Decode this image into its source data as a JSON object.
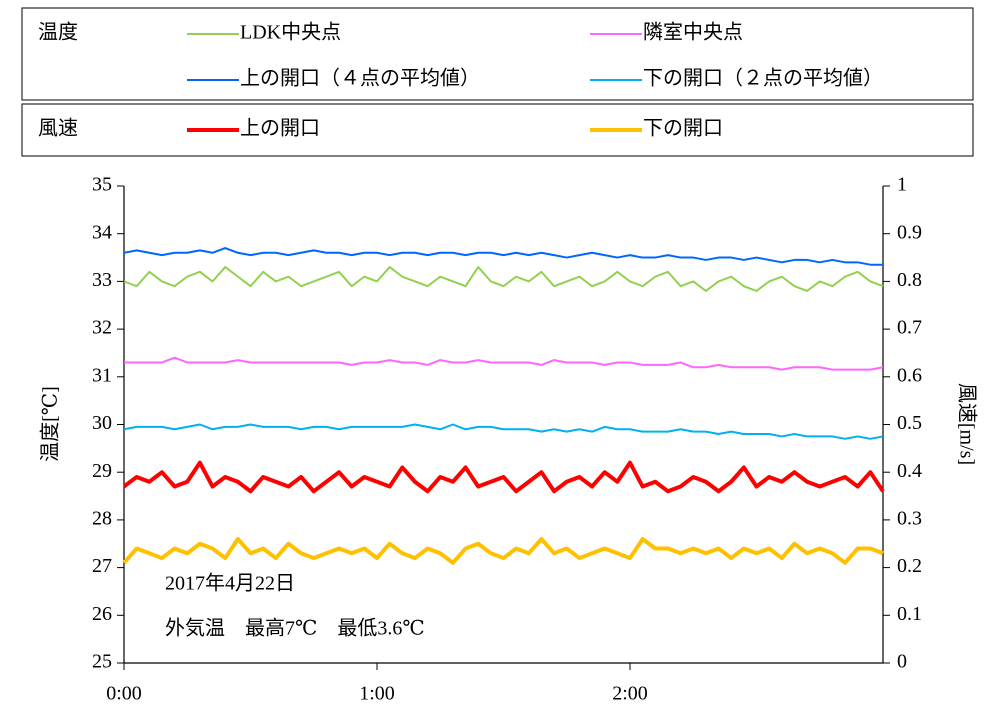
{
  "chart_data": {
    "type": "line",
    "legend_titles": [
      "温度",
      "風速"
    ],
    "annotations": [
      "2017年4月22日",
      "外気温　最高7℃　最低3.6℃"
    ],
    "ylabel": "温度[℃]",
    "y2label": "風速[m/s]",
    "x": [
      0,
      3,
      6,
      9,
      12,
      15,
      18,
      21,
      24,
      27,
      30,
      33,
      36,
      39,
      42,
      45,
      48,
      51,
      54,
      57,
      60,
      63,
      66,
      69,
      72,
      75,
      78,
      81,
      84,
      87,
      90,
      93,
      96,
      99,
      102,
      105,
      108,
      111,
      114,
      117,
      120,
      123,
      126,
      129,
      132,
      135,
      138,
      141,
      144,
      147,
      150,
      153,
      156,
      159,
      162,
      165,
      168,
      171,
      174,
      177,
      180
    ],
    "xlim": [
      0,
      180
    ],
    "xticks": [
      {
        "value": 0,
        "label": "0:00"
      },
      {
        "value": 60,
        "label": "1:00"
      },
      {
        "value": 120,
        "label": "2:00"
      }
    ],
    "ylim": [
      25,
      35
    ],
    "yticks": [
      25,
      26,
      27,
      28,
      29,
      30,
      31,
      32,
      33,
      34,
      35
    ],
    "y2lim": [
      0,
      1
    ],
    "y2ticks": [
      0,
      0.1,
      0.2,
      0.3,
      0.4,
      0.5,
      0.6,
      0.7,
      0.8,
      0.9,
      1
    ],
    "series": [
      {
        "name": "LDK中央点",
        "color": "#92d050",
        "values": [
          33.0,
          32.9,
          33.2,
          33.0,
          32.9,
          33.1,
          33.2,
          33.0,
          33.3,
          33.1,
          32.9,
          33.2,
          33.0,
          33.1,
          32.9,
          33.0,
          33.1,
          33.2,
          32.9,
          33.1,
          33.0,
          33.3,
          33.1,
          33.0,
          32.9,
          33.1,
          33.0,
          32.9,
          33.3,
          33.0,
          32.9,
          33.1,
          33.0,
          33.2,
          32.9,
          33.0,
          33.1,
          32.9,
          33.0,
          33.2,
          33.0,
          32.9,
          33.1,
          33.2,
          32.9,
          33.0,
          32.8,
          33.0,
          33.1,
          32.9,
          32.8,
          33.0,
          33.1,
          32.9,
          32.8,
          33.0,
          32.9,
          33.1,
          33.2,
          33.0,
          32.9
        ]
      },
      {
        "name": "隣室中央点",
        "color": "#ff66ff",
        "values": [
          31.3,
          31.3,
          31.3,
          31.3,
          31.4,
          31.3,
          31.3,
          31.3,
          31.3,
          31.35,
          31.3,
          31.3,
          31.3,
          31.3,
          31.3,
          31.3,
          31.3,
          31.3,
          31.25,
          31.3,
          31.3,
          31.35,
          31.3,
          31.3,
          31.25,
          31.35,
          31.3,
          31.3,
          31.35,
          31.3,
          31.3,
          31.3,
          31.3,
          31.25,
          31.35,
          31.3,
          31.3,
          31.3,
          31.25,
          31.3,
          31.3,
          31.25,
          31.25,
          31.25,
          31.3,
          31.2,
          31.2,
          31.25,
          31.2,
          31.2,
          31.2,
          31.2,
          31.15,
          31.2,
          31.2,
          31.2,
          31.15,
          31.15,
          31.15,
          31.15,
          31.2
        ]
      },
      {
        "name": "上の開口（４点の平均値）",
        "color": "#0066ff",
        "values": [
          33.6,
          33.65,
          33.6,
          33.55,
          33.6,
          33.6,
          33.65,
          33.6,
          33.7,
          33.6,
          33.55,
          33.6,
          33.6,
          33.55,
          33.6,
          33.65,
          33.6,
          33.6,
          33.55,
          33.6,
          33.6,
          33.55,
          33.6,
          33.6,
          33.55,
          33.6,
          33.6,
          33.55,
          33.6,
          33.6,
          33.55,
          33.6,
          33.55,
          33.6,
          33.55,
          33.5,
          33.55,
          33.6,
          33.55,
          33.5,
          33.55,
          33.5,
          33.5,
          33.55,
          33.5,
          33.5,
          33.45,
          33.5,
          33.5,
          33.45,
          33.5,
          33.45,
          33.4,
          33.45,
          33.45,
          33.4,
          33.45,
          33.4,
          33.4,
          33.35,
          33.35
        ]
      },
      {
        "name": "下の開口（２点の平均値）",
        "color": "#00b0f0",
        "values": [
          29.9,
          29.95,
          29.95,
          29.95,
          29.9,
          29.95,
          30.0,
          29.9,
          29.95,
          29.95,
          30.0,
          29.95,
          29.95,
          29.95,
          29.9,
          29.95,
          29.95,
          29.9,
          29.95,
          29.95,
          29.95,
          29.95,
          29.95,
          30.0,
          29.95,
          29.9,
          30.0,
          29.9,
          29.95,
          29.95,
          29.9,
          29.9,
          29.9,
          29.85,
          29.9,
          29.85,
          29.9,
          29.85,
          29.95,
          29.9,
          29.9,
          29.85,
          29.85,
          29.85,
          29.9,
          29.85,
          29.85,
          29.8,
          29.85,
          29.8,
          29.8,
          29.8,
          29.75,
          29.8,
          29.75,
          29.75,
          29.75,
          29.7,
          29.75,
          29.7,
          29.75
        ]
      },
      {
        "name": "上の開口",
        "color": "#ff0000",
        "axis": "y2",
        "values": [
          0.37,
          0.39,
          0.38,
          0.4,
          0.37,
          0.38,
          0.42,
          0.37,
          0.39,
          0.38,
          0.36,
          0.39,
          0.38,
          0.37,
          0.39,
          0.36,
          0.38,
          0.4,
          0.37,
          0.39,
          0.38,
          0.37,
          0.41,
          0.38,
          0.36,
          0.39,
          0.38,
          0.41,
          0.37,
          0.38,
          0.39,
          0.36,
          0.38,
          0.4,
          0.36,
          0.38,
          0.39,
          0.37,
          0.4,
          0.38,
          0.42,
          0.37,
          0.38,
          0.36,
          0.37,
          0.39,
          0.38,
          0.36,
          0.38,
          0.41,
          0.37,
          0.39,
          0.38,
          0.4,
          0.38,
          0.37,
          0.38,
          0.39,
          0.37,
          0.4,
          0.36
        ]
      },
      {
        "name": "下の開口",
        "color": "#ffc000",
        "axis": "y2",
        "values": [
          0.21,
          0.24,
          0.23,
          0.22,
          0.24,
          0.23,
          0.25,
          0.24,
          0.22,
          0.26,
          0.23,
          0.24,
          0.22,
          0.25,
          0.23,
          0.22,
          0.23,
          0.24,
          0.23,
          0.24,
          0.22,
          0.25,
          0.23,
          0.22,
          0.24,
          0.23,
          0.21,
          0.24,
          0.25,
          0.23,
          0.22,
          0.24,
          0.23,
          0.26,
          0.23,
          0.24,
          0.22,
          0.23,
          0.24,
          0.23,
          0.22,
          0.26,
          0.24,
          0.24,
          0.23,
          0.24,
          0.23,
          0.24,
          0.22,
          0.24,
          0.23,
          0.24,
          0.22,
          0.25,
          0.23,
          0.24,
          0.23,
          0.21,
          0.24,
          0.24,
          0.23
        ]
      }
    ]
  }
}
